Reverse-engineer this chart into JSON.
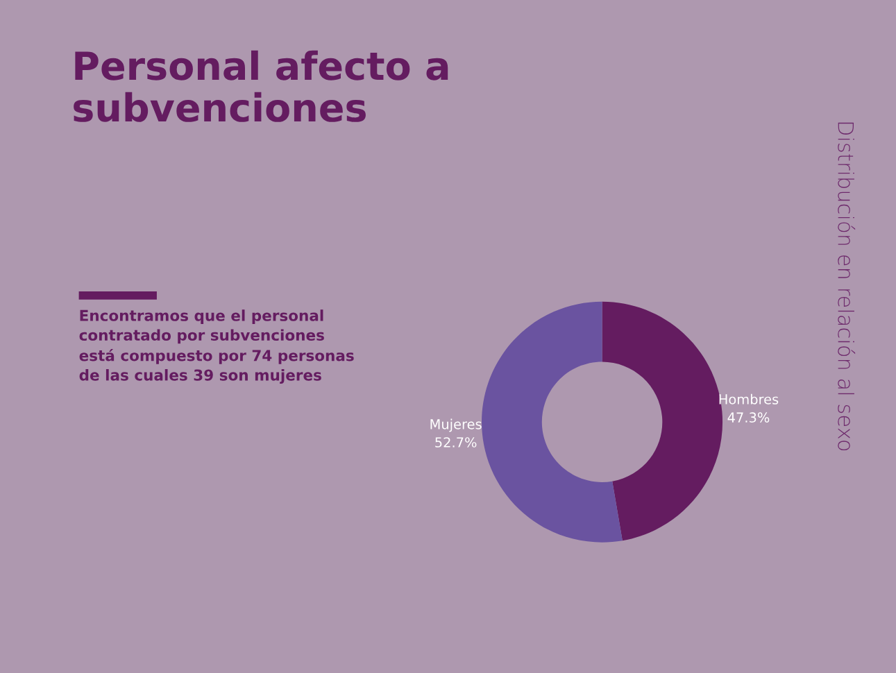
{
  "chart_data": {
    "type": "donut",
    "title": "Personal afecto a subvenciones",
    "subtitle": "Distribución en relación al sexo",
    "annotations": [
      "Encontramos que el personal contratado por subvenciones está compuesto por 74 personas de las cuales 39 son mujeres"
    ],
    "categories": [
      "Hombres",
      "Mujeres"
    ],
    "values": [
      47.3,
      52.7
    ],
    "value_labels": [
      "47.3%",
      "52.7%"
    ],
    "colors": [
      "#641c60",
      "#6a53a0"
    ],
    "legend": false
  }
}
